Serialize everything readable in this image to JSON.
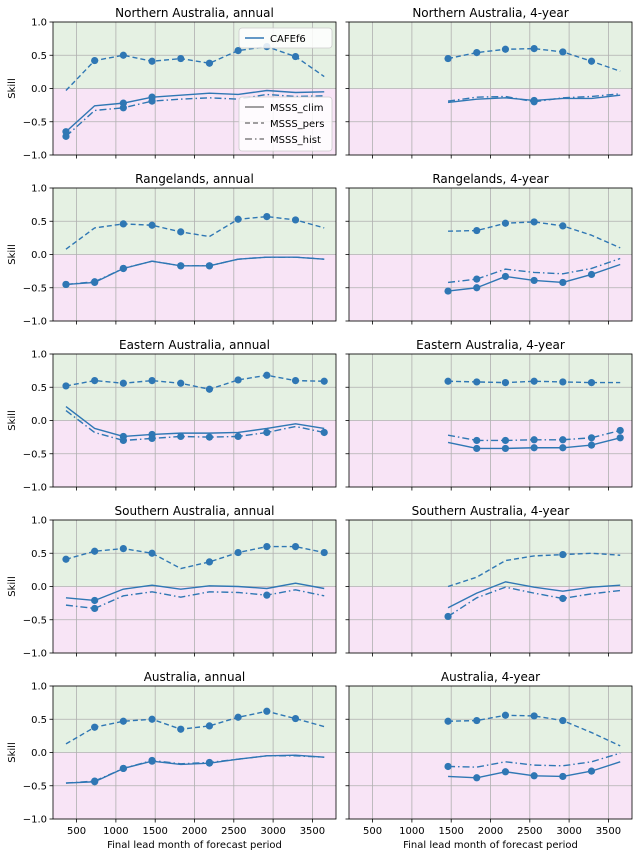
{
  "figure": {
    "ylabel": "Skill",
    "xlabel": "Final lead month of forecast period",
    "xlim": [
      200,
      3800
    ],
    "ylim": [
      -1.0,
      1.0
    ],
    "xticks": [
      500,
      1000,
      1500,
      2000,
      2500,
      3000,
      3500
    ],
    "yticks": [
      1.0,
      0.5,
      0.0,
      -0.5,
      -1.0
    ],
    "ytick_labels": [
      "1.0",
      "0.5",
      "0.0",
      "−0.5",
      "−1.0"
    ],
    "positive_fill": "#e5f1e3",
    "negative_fill": "#f8e4f6",
    "series_color": "#2f77b4",
    "legend_line_color": "#808080"
  },
  "legend_top": {
    "entries": [
      {
        "label": "CAFEf6",
        "style": "solid"
      }
    ]
  },
  "legend_bottom": {
    "entries": [
      {
        "label": "MSSS_clim",
        "style": "solid"
      },
      {
        "label": "MSSS_pers",
        "style": "dashed"
      },
      {
        "label": "MSSS_hist",
        "style": "dashdot"
      }
    ]
  },
  "chart_data": [
    {
      "type": "line",
      "title": "Northern Australia, annual",
      "x": [
        365,
        730,
        1095,
        1460,
        1825,
        2190,
        2555,
        2920,
        3285,
        3650
      ],
      "series": [
        {
          "name": "MSSS_clim",
          "style": "solid",
          "values": [
            -0.65,
            -0.26,
            -0.22,
            -0.13,
            -0.1,
            -0.07,
            -0.09,
            -0.03,
            -0.06,
            -0.05
          ],
          "markers": [
            true,
            false,
            true,
            true,
            false,
            false,
            false,
            false,
            false,
            false
          ]
        },
        {
          "name": "MSSS_pers",
          "style": "dashed",
          "values": [
            -0.03,
            0.42,
            0.5,
            0.41,
            0.45,
            0.38,
            0.57,
            0.63,
            0.48,
            0.18
          ],
          "markers": [
            false,
            true,
            true,
            true,
            true,
            true,
            true,
            true,
            true,
            false
          ]
        },
        {
          "name": "MSSS_hist",
          "style": "dashdot",
          "values": [
            -0.72,
            -0.33,
            -0.29,
            -0.19,
            -0.16,
            -0.14,
            -0.16,
            -0.09,
            -0.12,
            -0.11
          ],
          "markers": [
            true,
            false,
            true,
            true,
            false,
            false,
            false,
            false,
            false,
            false
          ]
        }
      ]
    },
    {
      "type": "line",
      "title": "Northern Australia, 4-year",
      "x": [
        1460,
        1825,
        2190,
        2555,
        2920,
        3285,
        3650
      ],
      "series": [
        {
          "name": "MSSS_clim",
          "style": "solid",
          "values": [
            -0.21,
            -0.16,
            -0.14,
            -0.18,
            -0.15,
            -0.15,
            -0.1
          ],
          "markers": [
            false,
            false,
            false,
            true,
            false,
            false,
            false
          ]
        },
        {
          "name": "MSSS_pers",
          "style": "dashed",
          "values": [
            0.45,
            0.54,
            0.59,
            0.6,
            0.55,
            0.41,
            0.26
          ],
          "markers": [
            true,
            true,
            true,
            true,
            true,
            true,
            false
          ]
        },
        {
          "name": "MSSS_hist",
          "style": "dashdot",
          "values": [
            -0.19,
            -0.13,
            -0.12,
            -0.2,
            -0.14,
            -0.12,
            -0.08
          ],
          "markers": [
            false,
            false,
            false,
            true,
            false,
            false,
            false
          ]
        }
      ]
    },
    {
      "type": "line",
      "title": "Rangelands, annual",
      "x": [
        365,
        730,
        1095,
        1460,
        1825,
        2190,
        2555,
        2920,
        3285,
        3650
      ],
      "series": [
        {
          "name": "MSSS_clim",
          "style": "solid",
          "values": [
            -0.45,
            -0.42,
            -0.21,
            -0.1,
            -0.17,
            -0.17,
            -0.07,
            -0.04,
            -0.04,
            -0.07
          ],
          "markers": [
            true,
            true,
            true,
            false,
            true,
            true,
            false,
            false,
            false,
            false
          ]
        },
        {
          "name": "MSSS_pers",
          "style": "dashed",
          "values": [
            0.08,
            0.4,
            0.46,
            0.44,
            0.34,
            0.27,
            0.53,
            0.57,
            0.52,
            0.4
          ],
          "markers": [
            false,
            false,
            true,
            true,
            true,
            false,
            true,
            true,
            true,
            false
          ]
        },
        {
          "name": "MSSS_hist",
          "style": "dashdot",
          "values": [
            -0.45,
            -0.41,
            -0.21,
            -0.1,
            -0.17,
            -0.17,
            -0.07,
            -0.04,
            -0.04,
            -0.07
          ],
          "markers": [
            true,
            true,
            true,
            false,
            true,
            true,
            false,
            false,
            false,
            false
          ]
        }
      ]
    },
    {
      "type": "line",
      "title": "Rangelands, 4-year",
      "x": [
        1460,
        1825,
        2190,
        2555,
        2920,
        3285,
        3650
      ],
      "series": [
        {
          "name": "MSSS_clim",
          "style": "solid",
          "values": [
            -0.55,
            -0.5,
            -0.33,
            -0.39,
            -0.42,
            -0.3,
            -0.15
          ],
          "markers": [
            true,
            true,
            true,
            true,
            true,
            true,
            false
          ]
        },
        {
          "name": "MSSS_pers",
          "style": "dashed",
          "values": [
            0.35,
            0.36,
            0.47,
            0.49,
            0.43,
            0.29,
            0.1
          ],
          "markers": [
            false,
            true,
            true,
            true,
            true,
            false,
            false
          ]
        },
        {
          "name": "MSSS_hist",
          "style": "dashdot",
          "values": [
            -0.42,
            -0.37,
            -0.22,
            -0.27,
            -0.29,
            -0.21,
            -0.06
          ],
          "markers": [
            false,
            true,
            false,
            false,
            false,
            false,
            false
          ]
        }
      ]
    },
    {
      "type": "line",
      "title": "Eastern Australia, annual",
      "x": [
        365,
        730,
        1095,
        1460,
        1825,
        2190,
        2555,
        2920,
        3285,
        3650
      ],
      "series": [
        {
          "name": "MSSS_clim",
          "style": "solid",
          "values": [
            0.21,
            -0.12,
            -0.24,
            -0.21,
            -0.19,
            -0.19,
            -0.18,
            -0.12,
            -0.05,
            -0.12
          ],
          "markers": [
            false,
            false,
            true,
            true,
            false,
            false,
            false,
            false,
            false,
            false
          ]
        },
        {
          "name": "MSSS_pers",
          "style": "dashed",
          "values": [
            0.52,
            0.6,
            0.56,
            0.6,
            0.56,
            0.47,
            0.61,
            0.68,
            0.6,
            0.59
          ],
          "markers": [
            true,
            true,
            true,
            true,
            true,
            true,
            true,
            true,
            true,
            true
          ]
        },
        {
          "name": "MSSS_hist",
          "style": "dashdot",
          "values": [
            0.15,
            -0.18,
            -0.3,
            -0.27,
            -0.24,
            -0.25,
            -0.24,
            -0.18,
            -0.09,
            -0.18
          ],
          "markers": [
            false,
            false,
            true,
            true,
            true,
            true,
            true,
            true,
            false,
            true
          ]
        }
      ]
    },
    {
      "type": "line",
      "title": "Eastern Australia, 4-year",
      "x": [
        1460,
        1825,
        2190,
        2555,
        2920,
        3285,
        3650
      ],
      "series": [
        {
          "name": "MSSS_clim",
          "style": "solid",
          "values": [
            -0.33,
            -0.42,
            -0.42,
            -0.41,
            -0.41,
            -0.37,
            -0.26
          ],
          "markers": [
            false,
            true,
            true,
            true,
            true,
            true,
            true
          ]
        },
        {
          "name": "MSSS_pers",
          "style": "dashed",
          "values": [
            0.59,
            0.58,
            0.57,
            0.59,
            0.58,
            0.57,
            0.57
          ],
          "markers": [
            true,
            true,
            true,
            true,
            true,
            true,
            false
          ]
        },
        {
          "name": "MSSS_hist",
          "style": "dashdot",
          "values": [
            -0.22,
            -0.3,
            -0.3,
            -0.29,
            -0.29,
            -0.26,
            -0.15
          ],
          "markers": [
            false,
            true,
            true,
            true,
            true,
            true,
            true
          ]
        }
      ]
    },
    {
      "type": "line",
      "title": "Southern Australia, annual",
      "x": [
        365,
        730,
        1095,
        1460,
        1825,
        2190,
        2555,
        2920,
        3285,
        3650
      ],
      "series": [
        {
          "name": "MSSS_clim",
          "style": "solid",
          "values": [
            -0.17,
            -0.21,
            -0.04,
            0.02,
            -0.04,
            0.01,
            0.0,
            -0.03,
            0.05,
            -0.03
          ],
          "markers": [
            false,
            true,
            false,
            false,
            false,
            false,
            false,
            false,
            false,
            false
          ]
        },
        {
          "name": "MSSS_pers",
          "style": "dashed",
          "values": [
            0.41,
            0.53,
            0.57,
            0.5,
            0.27,
            0.37,
            0.51,
            0.6,
            0.6,
            0.51
          ],
          "markers": [
            true,
            true,
            true,
            true,
            false,
            true,
            true,
            true,
            true,
            true
          ]
        },
        {
          "name": "MSSS_hist",
          "style": "dashdot",
          "values": [
            -0.28,
            -0.33,
            -0.14,
            -0.08,
            -0.16,
            -0.08,
            -0.09,
            -0.13,
            -0.05,
            -0.14
          ],
          "markers": [
            false,
            true,
            false,
            false,
            false,
            false,
            false,
            true,
            false,
            false
          ]
        }
      ]
    },
    {
      "type": "line",
      "title": "Southern Australia, 4-year",
      "x": [
        1460,
        1825,
        2190,
        2555,
        2920,
        3285,
        3650
      ],
      "series": [
        {
          "name": "MSSS_clim",
          "style": "solid",
          "values": [
            -0.32,
            -0.1,
            0.07,
            -0.01,
            -0.07,
            -0.01,
            0.02
          ],
          "markers": [
            false,
            false,
            false,
            false,
            false,
            false,
            false
          ]
        },
        {
          "name": "MSSS_pers",
          "style": "dashed",
          "values": [
            0.0,
            0.14,
            0.39,
            0.46,
            0.48,
            0.5,
            0.47
          ],
          "markers": [
            false,
            false,
            false,
            false,
            true,
            false,
            false
          ]
        },
        {
          "name": "MSSS_hist",
          "style": "dashdot",
          "values": [
            -0.45,
            -0.17,
            -0.01,
            -0.1,
            -0.18,
            -0.11,
            -0.06
          ],
          "markers": [
            true,
            false,
            false,
            false,
            true,
            false,
            false
          ]
        }
      ]
    },
    {
      "type": "line",
      "title": "Australia, annual",
      "x": [
        365,
        730,
        1095,
        1460,
        1825,
        2190,
        2555,
        2920,
        3285,
        3650
      ],
      "series": [
        {
          "name": "MSSS_clim",
          "style": "solid",
          "values": [
            -0.46,
            -0.44,
            -0.24,
            -0.13,
            -0.18,
            -0.16,
            -0.1,
            -0.05,
            -0.04,
            -0.07
          ],
          "markers": [
            false,
            true,
            true,
            true,
            false,
            true,
            false,
            false,
            false,
            false
          ]
        },
        {
          "name": "MSSS_pers",
          "style": "dashed",
          "values": [
            0.13,
            0.38,
            0.47,
            0.5,
            0.35,
            0.4,
            0.53,
            0.62,
            0.51,
            0.39
          ],
          "markers": [
            false,
            true,
            true,
            true,
            true,
            true,
            true,
            true,
            true,
            false
          ]
        },
        {
          "name": "MSSS_hist",
          "style": "dashdot",
          "values": [
            -0.46,
            -0.43,
            -0.24,
            -0.12,
            -0.17,
            -0.15,
            -0.1,
            -0.05,
            -0.05,
            -0.07
          ],
          "markers": [
            false,
            true,
            true,
            true,
            false,
            true,
            false,
            false,
            false,
            false
          ]
        }
      ]
    },
    {
      "type": "line",
      "title": "Australia, 4-year",
      "x": [
        1460,
        1825,
        2190,
        2555,
        2920,
        3285,
        3650
      ],
      "series": [
        {
          "name": "MSSS_clim",
          "style": "solid",
          "values": [
            -0.36,
            -0.38,
            -0.29,
            -0.35,
            -0.36,
            -0.28,
            -0.14
          ],
          "markers": [
            false,
            true,
            true,
            true,
            true,
            true,
            false
          ]
        },
        {
          "name": "MSSS_pers",
          "style": "dashed",
          "values": [
            0.47,
            0.48,
            0.56,
            0.55,
            0.48,
            0.3,
            0.1
          ],
          "markers": [
            true,
            true,
            true,
            true,
            true,
            false,
            false
          ]
        },
        {
          "name": "MSSS_hist",
          "style": "dashdot",
          "values": [
            -0.21,
            -0.22,
            -0.14,
            -0.19,
            -0.2,
            -0.14,
            -0.01
          ],
          "markers": [
            true,
            false,
            false,
            false,
            false,
            false,
            false
          ]
        }
      ]
    }
  ]
}
